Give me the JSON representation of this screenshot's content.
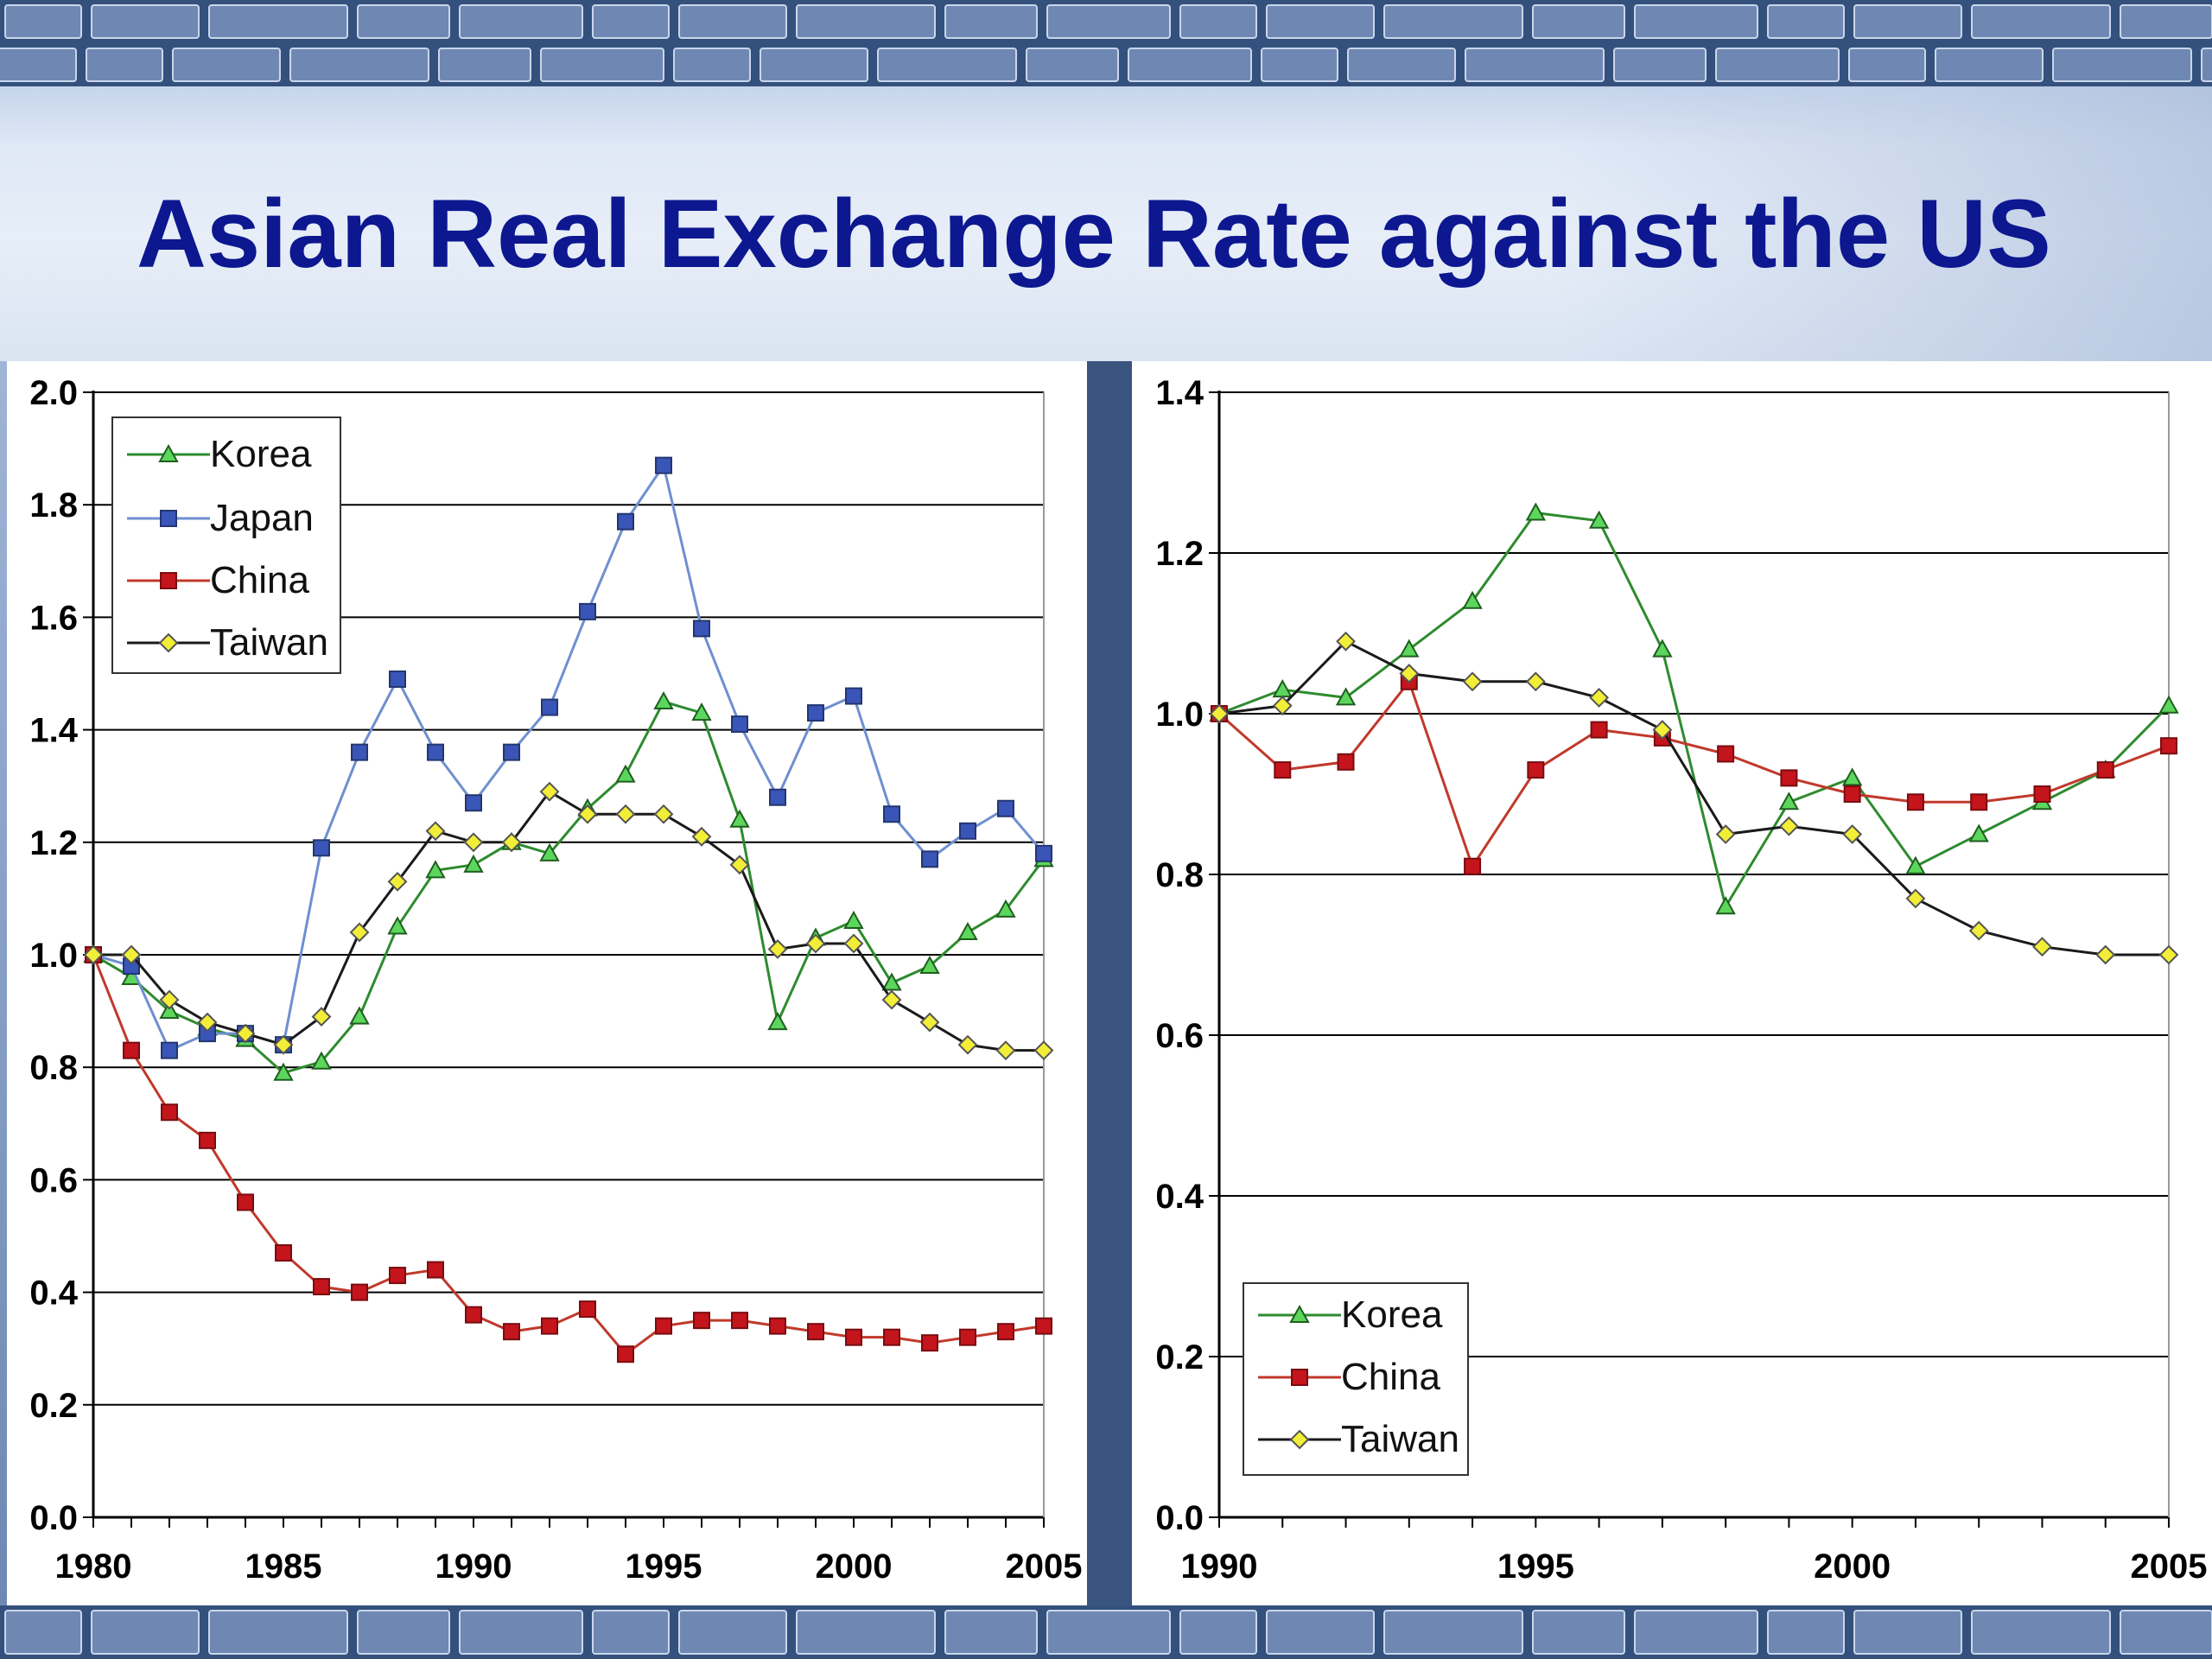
{
  "slide": {
    "title": "Asian Real Exchange Rate against the US"
  },
  "colors": {
    "title": "#0c1790",
    "korea": "#2e8b2e",
    "korea_fill": "#5cd65c",
    "japan": "#6f8fd0",
    "japan_fill": "#3a55b8",
    "china": "#c0392b",
    "china_fill": "#c4151c",
    "taiwan": "#1a1a1a",
    "taiwan_fill": "#f2ee38"
  },
  "chart_data": [
    {
      "type": "line",
      "x": [
        1980,
        1981,
        1982,
        1983,
        1984,
        1985,
        1986,
        1987,
        1988,
        1989,
        1990,
        1991,
        1992,
        1993,
        1994,
        1995,
        1996,
        1997,
        1998,
        1999,
        2000,
        2001,
        2002,
        2003,
        2004,
        2005
      ],
      "xticks": [
        "1980",
        "1985",
        "1990",
        "1995",
        "2000",
        "2005"
      ],
      "yticks": [
        "0.0",
        "0.2",
        "0.4",
        "0.6",
        "0.8",
        "1.0",
        "1.2",
        "1.4",
        "1.6",
        "1.8",
        "2.0"
      ],
      "ylim": [
        0,
        2.0
      ],
      "xlim": [
        1980,
        2005
      ],
      "grid": "horizontal",
      "legend_position": "top-left",
      "series": [
        {
          "name": "Korea",
          "marker": "triangle",
          "values": [
            1.0,
            0.96,
            0.9,
            0.87,
            0.85,
            0.79,
            0.81,
            0.89,
            1.05,
            1.15,
            1.16,
            1.2,
            1.18,
            1.26,
            1.32,
            1.45,
            1.43,
            1.24,
            0.88,
            1.03,
            1.06,
            0.95,
            0.98,
            1.04,
            1.08,
            1.17
          ]
        },
        {
          "name": "Japan",
          "marker": "square",
          "values": [
            1.0,
            0.98,
            0.83,
            0.86,
            0.86,
            0.84,
            1.19,
            1.36,
            1.49,
            1.36,
            1.27,
            1.36,
            1.44,
            1.61,
            1.77,
            1.87,
            1.58,
            1.41,
            1.28,
            1.43,
            1.46,
            1.25,
            1.17,
            1.22,
            1.26,
            1.18
          ]
        },
        {
          "name": "China",
          "marker": "square",
          "values": [
            1.0,
            0.83,
            0.72,
            0.67,
            0.56,
            0.47,
            0.41,
            0.4,
            0.43,
            0.44,
            0.36,
            0.33,
            0.34,
            0.37,
            0.29,
            0.34,
            0.35,
            0.35,
            0.34,
            0.33,
            0.32,
            0.32,
            0.31,
            0.32,
            0.33,
            0.34
          ]
        },
        {
          "name": "Taiwan",
          "marker": "diamond",
          "values": [
            1.0,
            1.0,
            0.92,
            0.88,
            0.86,
            0.84,
            0.89,
            1.04,
            1.13,
            1.22,
            1.2,
            1.2,
            1.29,
            1.25,
            1.25,
            1.25,
            1.21,
            1.16,
            1.01,
            1.02,
            1.02,
            0.92,
            0.88,
            0.84,
            0.83,
            0.83
          ]
        }
      ]
    },
    {
      "type": "line",
      "x": [
        1990,
        1991,
        1992,
        1993,
        1994,
        1995,
        1996,
        1997,
        1998,
        1999,
        2000,
        2001,
        2002,
        2003,
        2004,
        2005
      ],
      "xticks": [
        "1990",
        "1995",
        "2000",
        "2005"
      ],
      "yticks": [
        "0.0",
        "0.2",
        "0.4",
        "0.6",
        "0.8",
        "1.0",
        "1.2",
        "1.4"
      ],
      "ylim": [
        0,
        1.4
      ],
      "xlim": [
        1990,
        2005
      ],
      "grid": "horizontal",
      "legend_position": "bottom-left",
      "series": [
        {
          "name": "Korea",
          "marker": "triangle",
          "values": [
            1.0,
            1.03,
            1.02,
            1.08,
            1.14,
            1.25,
            1.24,
            1.08,
            0.76,
            0.89,
            0.92,
            0.81,
            0.85,
            0.89,
            0.93,
            1.01
          ]
        },
        {
          "name": "China",
          "marker": "square",
          "values": [
            1.0,
            0.93,
            0.94,
            1.04,
            0.81,
            0.93,
            0.98,
            0.97,
            0.95,
            0.92,
            0.9,
            0.89,
            0.89,
            0.9,
            0.93,
            0.96
          ]
        },
        {
          "name": "Taiwan",
          "marker": "diamond",
          "values": [
            1.0,
            1.01,
            1.09,
            1.05,
            1.04,
            1.04,
            1.02,
            0.98,
            0.85,
            0.86,
            0.85,
            0.77,
            0.73,
            0.71,
            0.7,
            0.7
          ]
        }
      ]
    }
  ]
}
